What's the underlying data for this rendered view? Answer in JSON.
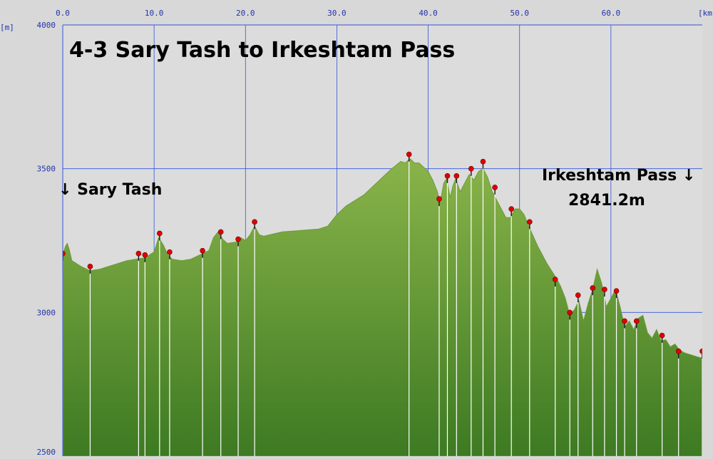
{
  "chart_data": {
    "type": "area",
    "title": "4-3 Sary Tash to Irkeshtam Pass",
    "x_unit": "[km]",
    "y_unit": "[m]",
    "xlim": [
      0,
      70
    ],
    "ylim": [
      2500,
      4000
    ],
    "x_ticks": [
      "0.0",
      "10.0",
      "20.0",
      "30.0",
      "40.0",
      "50.0",
      "60.0"
    ],
    "x_tick_values": [
      0,
      10,
      20,
      30,
      40,
      50,
      60
    ],
    "y_ticks": [
      "4000",
      "3500",
      "3000",
      "2500"
    ],
    "y_tick_values": [
      4000,
      3500,
      3000,
      2500
    ],
    "grid": true,
    "fill_color_top": "#8ab44a",
    "fill_color_bottom": "#3d7a22",
    "plot_background": "#dcdcdc",
    "grid_color": "#3355dd",
    "start_label": "↓ Sary Tash",
    "end_label_line1": "Irkeshtam Pass ↓",
    "end_label_line2": "2841.2m",
    "profile": [
      [
        0,
        3200
      ],
      [
        0.3,
        3230
      ],
      [
        0.5,
        3240
      ],
      [
        0.7,
        3220
      ],
      [
        1,
        3180
      ],
      [
        2,
        3160
      ],
      [
        3,
        3145
      ],
      [
        4,
        3150
      ],
      [
        5,
        3160
      ],
      [
        6,
        3170
      ],
      [
        7,
        3180
      ],
      [
        8,
        3185
      ],
      [
        9,
        3190
      ],
      [
        10,
        3210
      ],
      [
        10.5,
        3260
      ],
      [
        11,
        3235
      ],
      [
        11.5,
        3200
      ],
      [
        12,
        3185
      ],
      [
        13,
        3180
      ],
      [
        14,
        3185
      ],
      [
        15,
        3200
      ],
      [
        16,
        3215
      ],
      [
        16.5,
        3260
      ],
      [
        17,
        3280
      ],
      [
        17.5,
        3255
      ],
      [
        18,
        3240
      ],
      [
        19,
        3245
      ],
      [
        19.5,
        3260
      ],
      [
        20,
        3250
      ],
      [
        20.5,
        3270
      ],
      [
        21,
        3300
      ],
      [
        21.5,
        3270
      ],
      [
        22,
        3265
      ],
      [
        24,
        3280
      ],
      [
        26,
        3285
      ],
      [
        28,
        3290
      ],
      [
        29,
        3300
      ],
      [
        30,
        3340
      ],
      [
        31,
        3370
      ],
      [
        32,
        3390
      ],
      [
        33,
        3410
      ],
      [
        34,
        3440
      ],
      [
        35,
        3470
      ],
      [
        36,
        3500
      ],
      [
        37,
        3525
      ],
      [
        37.5,
        3520
      ],
      [
        38,
        3535
      ],
      [
        38.5,
        3520
      ],
      [
        39,
        3520
      ],
      [
        40,
        3490
      ],
      [
        40.5,
        3460
      ],
      [
        41,
        3420
      ],
      [
        41.3,
        3380
      ],
      [
        41.7,
        3450
      ],
      [
        42,
        3465
      ],
      [
        42.4,
        3400
      ],
      [
        42.7,
        3440
      ],
      [
        43,
        3465
      ],
      [
        43.5,
        3420
      ],
      [
        44,
        3450
      ],
      [
        44.5,
        3480
      ],
      [
        45,
        3460
      ],
      [
        45.5,
        3490
      ],
      [
        46,
        3500
      ],
      [
        46.5,
        3470
      ],
      [
        47,
        3420
      ],
      [
        47.5,
        3390
      ],
      [
        48,
        3360
      ],
      [
        48.5,
        3330
      ],
      [
        49,
        3330
      ],
      [
        49.5,
        3360
      ],
      [
        50,
        3360
      ],
      [
        50.5,
        3340
      ],
      [
        51,
        3300
      ],
      [
        52,
        3230
      ],
      [
        53,
        3170
      ],
      [
        54,
        3120
      ],
      [
        54.5,
        3090
      ],
      [
        55,
        3050
      ],
      [
        55.5,
        2990
      ],
      [
        56,
        3010
      ],
      [
        56.5,
        3040
      ],
      [
        57,
        2970
      ],
      [
        57.5,
        3030
      ],
      [
        58,
        3080
      ],
      [
        58.5,
        3150
      ],
      [
        59,
        3100
      ],
      [
        59.5,
        3020
      ],
      [
        60,
        3050
      ],
      [
        60.5,
        3080
      ],
      [
        61,
        3020
      ],
      [
        61.5,
        2950
      ],
      [
        62,
        2970
      ],
      [
        62.5,
        2940
      ],
      [
        63,
        2980
      ],
      [
        63.5,
        2990
      ],
      [
        64,
        2930
      ],
      [
        64.5,
        2910
      ],
      [
        65,
        2940
      ],
      [
        65.5,
        2900
      ],
      [
        66,
        2905
      ],
      [
        66.5,
        2880
      ],
      [
        67,
        2890
      ],
      [
        67.5,
        2870
      ],
      [
        68,
        2860
      ],
      [
        68.5,
        2855
      ],
      [
        69,
        2850
      ],
      [
        69.5,
        2845
      ],
      [
        70,
        2841
      ]
    ],
    "waypoints": [
      [
        0,
        3190
      ],
      [
        3,
        3145
      ],
      [
        8.3,
        3190
      ],
      [
        9,
        3185
      ],
      [
        10.6,
        3260
      ],
      [
        11.7,
        3195
      ],
      [
        15.3,
        3200
      ],
      [
        17.3,
        3265
      ],
      [
        19.2,
        3240
      ],
      [
        21,
        3300
      ],
      [
        37.9,
        3535
      ],
      [
        41.2,
        3380
      ],
      [
        42.1,
        3460
      ],
      [
        43.1,
        3460
      ],
      [
        44.7,
        3485
      ],
      [
        46,
        3510
      ],
      [
        47.3,
        3420
      ],
      [
        49.1,
        3345
      ],
      [
        51.1,
        3300
      ],
      [
        53.9,
        3100
      ],
      [
        55.5,
        2985
      ],
      [
        56.4,
        3045
      ],
      [
        58,
        3070
      ],
      [
        59.3,
        3065
      ],
      [
        60.6,
        3060
      ],
      [
        61.5,
        2955
      ],
      [
        62.8,
        2955
      ],
      [
        65.6,
        2905
      ],
      [
        67.4,
        2850
      ],
      [
        70,
        2850
      ]
    ]
  }
}
